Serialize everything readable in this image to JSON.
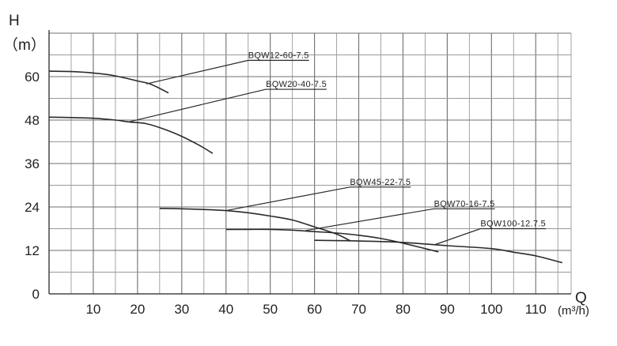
{
  "chart_data": {
    "type": "line",
    "title": "",
    "xlabel": "Q",
    "xunit": "(m³/h)",
    "ylabel": "H",
    "yunit": "（m）",
    "xlim": [
      0,
      118
    ],
    "ylim": [
      0,
      72
    ],
    "xticks": [
      10,
      20,
      30,
      40,
      50,
      60,
      70,
      80,
      90,
      100,
      110
    ],
    "yticks": [
      0,
      12,
      24,
      36,
      48,
      60
    ],
    "grid": true,
    "series": [
      {
        "name": "BQW12-60-7.5",
        "x": [
          0,
          5,
          10,
          15,
          20,
          23,
          27
        ],
        "y": [
          61.5,
          61.4,
          61.0,
          60.2,
          58.8,
          57.9,
          55.5
        ],
        "label_at": [
          45,
          64.5
        ],
        "anchor": [
          22,
          58
        ]
      },
      {
        "name": "BQW20-40-7.5",
        "x": [
          0,
          5,
          10,
          15,
          18,
          22,
          26,
          30,
          34,
          37
        ],
        "y": [
          48.8,
          48.7,
          48.5,
          48.0,
          47.5,
          47.0,
          45.5,
          43.5,
          41.0,
          38.8
        ],
        "label_at": [
          49,
          56.5
        ],
        "anchor": [
          18,
          47.5
        ]
      },
      {
        "name": "BQW45-22-7.5",
        "x": [
          25,
          30,
          35,
          40,
          45,
          50,
          55,
          60,
          65,
          68
        ],
        "y": [
          23.6,
          23.5,
          23.3,
          23.0,
          22.4,
          21.5,
          20.4,
          18.5,
          16.5,
          14.7
        ],
        "label_at": [
          68,
          29.5
        ],
        "anchor": [
          40,
          23
        ]
      },
      {
        "name": "BQW70-16-7.5",
        "x": [
          40,
          45,
          50,
          55,
          60,
          65,
          70,
          75,
          80,
          88
        ],
        "y": [
          17.8,
          17.8,
          17.8,
          17.6,
          17.2,
          16.8,
          16.2,
          15.3,
          14.0,
          11.6
        ],
        "label_at": [
          87,
          23.5
        ],
        "anchor": [
          58,
          17.5
        ]
      },
      {
        "name": "BQW100-12.7.5",
        "x": [
          60,
          70,
          80,
          90,
          100,
          105,
          110,
          116
        ],
        "y": [
          14.8,
          14.6,
          14.2,
          13.3,
          12.5,
          11.5,
          10.5,
          8.6
        ],
        "label_at": [
          97.5,
          18
        ],
        "anchor": [
          87,
          13.5
        ]
      }
    ]
  },
  "style": {
    "background": "#ffffff",
    "major_grid_color": "#6f6f6f",
    "minor_grid_color": "#9a9a9a",
    "curve_color": "#2a2a2a"
  }
}
